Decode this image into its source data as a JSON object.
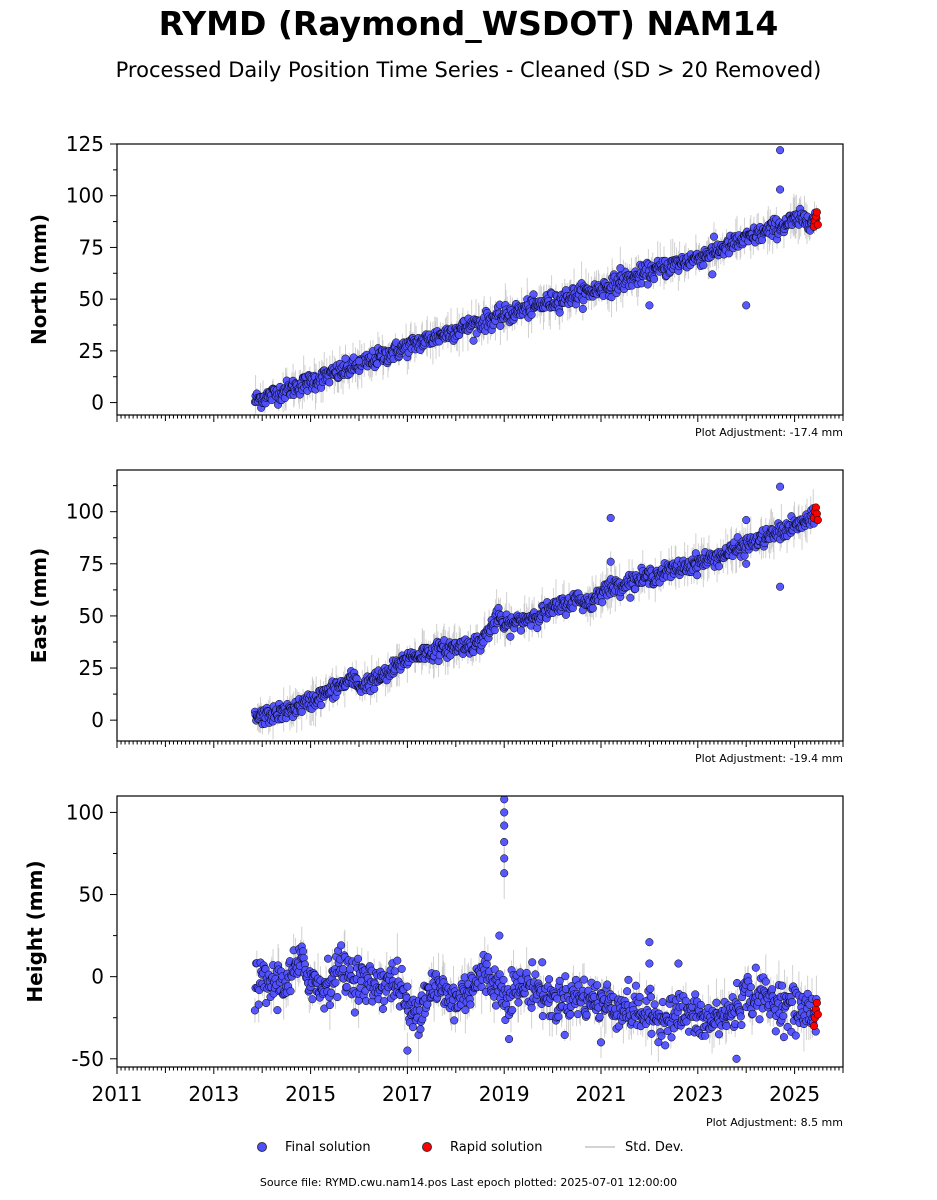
{
  "title": "RYMD (Raymond_WSDOT) NAM14",
  "subtitle": "Processed Daily Position Time Series - Cleaned (SD > 20 Removed)",
  "legend": {
    "final": "Final solution",
    "rapid": "Rapid solution",
    "std": "Std. Dev."
  },
  "footer": "Source file: RYMD.cwu.nam14.pos  Last epoch plotted: 2025-07-01 12:00:00",
  "colors": {
    "final": "#4f4fff",
    "rapid": "#ff0000",
    "std": "#bdbdbd",
    "edge": "#000000"
  },
  "chart_data": [
    {
      "type": "scatter",
      "ylabel": "North (mm)",
      "adjustment": "Plot Adjustment: -17.4 mm",
      "xlim": [
        2011,
        2026
      ],
      "ylim": [
        -6,
        125
      ],
      "yticks": [
        0,
        25,
        50,
        75,
        100,
        125
      ],
      "trend": [
        [
          2013.85,
          1
        ],
        [
          2015.0,
          10
        ],
        [
          2016.0,
          18
        ],
        [
          2017.0,
          27
        ],
        [
          2018.0,
          35
        ],
        [
          2019.0,
          42
        ],
        [
          2020.0,
          49
        ],
        [
          2021.0,
          55
        ],
        [
          2022.0,
          63
        ],
        [
          2023.0,
          70
        ],
        [
          2024.0,
          79
        ],
        [
          2025.0,
          88
        ],
        [
          2025.45,
          89
        ]
      ],
      "scatter_sd": 2.2,
      "outliers": [
        [
          2024.7,
          122
        ],
        [
          2024.7,
          103
        ],
        [
          2024.0,
          47
        ],
        [
          2021.4,
          65
        ],
        [
          2022.0,
          47
        ],
        [
          2023.3,
          62
        ],
        [
          2016.0,
          20
        ]
      ],
      "rapid": [
        [
          2025.4,
          85
        ],
        [
          2025.42,
          88
        ],
        [
          2025.44,
          90
        ],
        [
          2025.46,
          92
        ],
        [
          2025.48,
          86
        ]
      ]
    },
    {
      "type": "scatter",
      "ylabel": "East (mm)",
      "adjustment": "Plot Adjustment: -19.4 mm",
      "xlim": [
        2011,
        2026
      ],
      "ylim": [
        -10,
        120
      ],
      "yticks": [
        0,
        25,
        50,
        75,
        100
      ],
      "trend": [
        [
          2013.85,
          1
        ],
        [
          2014.5,
          4
        ],
        [
          2015.0,
          9
        ],
        [
          2015.9,
          20
        ],
        [
          2016.0,
          16
        ],
        [
          2016.6,
          22
        ],
        [
          2017.0,
          30
        ],
        [
          2017.5,
          33
        ],
        [
          2018.5,
          37
        ],
        [
          2018.9,
          50
        ],
        [
          2019.0,
          45
        ],
        [
          2020.0,
          53
        ],
        [
          2020.5,
          58
        ],
        [
          2020.8,
          56
        ],
        [
          2021.0,
          62
        ],
        [
          2022.0,
          69
        ],
        [
          2022.5,
          72
        ],
        [
          2023.5,
          79
        ],
        [
          2024.0,
          84
        ],
        [
          2025.0,
          93
        ],
        [
          2025.45,
          97
        ]
      ],
      "scatter_sd": 2.0,
      "outliers": [
        [
          2021.2,
          97
        ],
        [
          2021.2,
          76
        ],
        [
          2024.7,
          112
        ],
        [
          2024.7,
          64
        ],
        [
          2024.0,
          96
        ],
        [
          2024.0,
          75
        ]
      ],
      "rapid": [
        [
          2025.4,
          97
        ],
        [
          2025.42,
          100
        ],
        [
          2025.44,
          102
        ],
        [
          2025.46,
          99
        ],
        [
          2025.48,
          96
        ]
      ]
    },
    {
      "type": "scatter",
      "ylabel": "Height (mm)",
      "adjustment": "Plot Adjustment: 8.5 mm",
      "xlim": [
        2011,
        2026
      ],
      "ylim": [
        -55,
        110
      ],
      "yticks": [
        -50,
        0,
        50,
        100
      ],
      "xticks": [
        2011,
        2013,
        2015,
        2017,
        2019,
        2021,
        2023,
        2025
      ],
      "trend": [
        [
          2013.85,
          -5
        ],
        [
          2014.5,
          -3
        ],
        [
          2014.8,
          8
        ],
        [
          2015.2,
          -8
        ],
        [
          2015.6,
          5
        ],
        [
          2016.2,
          -5
        ],
        [
          2016.8,
          -3
        ],
        [
          2017.1,
          -25
        ],
        [
          2017.5,
          -5
        ],
        [
          2018.0,
          -15
        ],
        [
          2018.6,
          3
        ],
        [
          2019.0,
          -10
        ],
        [
          2019.6,
          -5
        ],
        [
          2020.0,
          -15
        ],
        [
          2020.5,
          -12
        ],
        [
          2021.0,
          -15
        ],
        [
          2021.6,
          -20
        ],
        [
          2022.2,
          -25
        ],
        [
          2022.7,
          -22
        ],
        [
          2023.2,
          -28
        ],
        [
          2023.7,
          -22
        ],
        [
          2024.0,
          -10
        ],
        [
          2024.6,
          -15
        ],
        [
          2025.0,
          -20
        ],
        [
          2025.45,
          -22
        ]
      ],
      "scatter_sd": 6.5,
      "outliers": [
        [
          2019.0,
          108
        ],
        [
          2019.0,
          100
        ],
        [
          2019.0,
          92
        ],
        [
          2019.0,
          82
        ],
        [
          2019.0,
          72
        ],
        [
          2019.0,
          63
        ],
        [
          2018.9,
          25
        ],
        [
          2022.0,
          21
        ],
        [
          2022.0,
          8
        ],
        [
          2022.6,
          8
        ],
        [
          2017.0,
          -45
        ],
        [
          2023.8,
          -50
        ],
        [
          2021.0,
          -40
        ],
        [
          2019.1,
          -38
        ]
      ],
      "rapid": [
        [
          2025.4,
          -30
        ],
        [
          2025.42,
          -25
        ],
        [
          2025.44,
          -20
        ],
        [
          2025.46,
          -16
        ],
        [
          2025.48,
          -23
        ]
      ]
    }
  ]
}
